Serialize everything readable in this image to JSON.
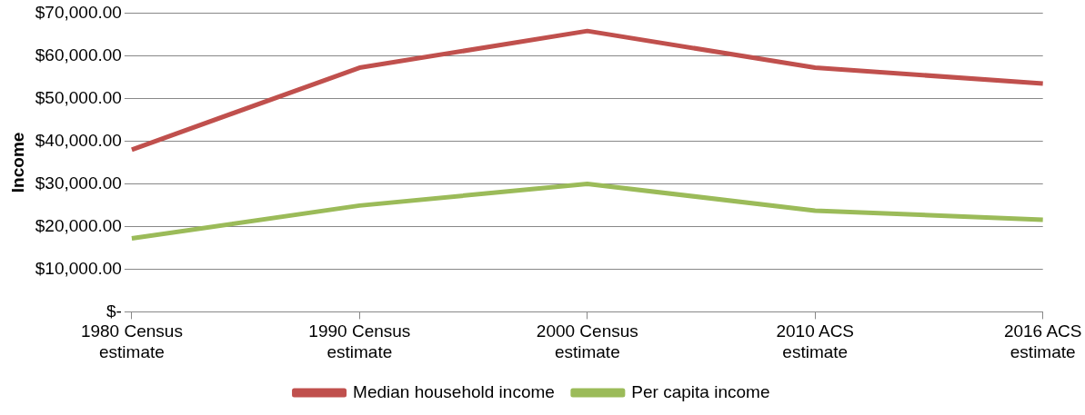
{
  "chart_data": {
    "type": "line",
    "ylabel": "Income",
    "categories": [
      "1980 Census estimate",
      "1990 Census estimate",
      "2000 Census estimate",
      "2010 ACS estimate",
      "2016 ACS estimate"
    ],
    "series": [
      {
        "name": "Median household income",
        "color": "#c0504d",
        "values": [
          38000,
          57200,
          65800,
          57200,
          53500
        ]
      },
      {
        "name": "Per capita income",
        "color": "#9bbb59",
        "values": [
          17200,
          24900,
          30000,
          23700,
          21600
        ]
      }
    ],
    "ylim": [
      0,
      70000
    ],
    "yticks": [
      {
        "value": 0,
        "label": "$-"
      },
      {
        "value": 10000,
        "label": "$10,000.00"
      },
      {
        "value": 20000,
        "label": "$20,000.00"
      },
      {
        "value": 30000,
        "label": "$30,000.00"
      },
      {
        "value": 40000,
        "label": "$40,000.00"
      },
      {
        "value": 50000,
        "label": "$50,000.00"
      },
      {
        "value": 60000,
        "label": "$60,000.00"
      },
      {
        "value": 70000,
        "label": "$70,000.00"
      }
    ],
    "grid": "y",
    "legend": "bottom",
    "marker": "none",
    "line_style": "solid"
  }
}
